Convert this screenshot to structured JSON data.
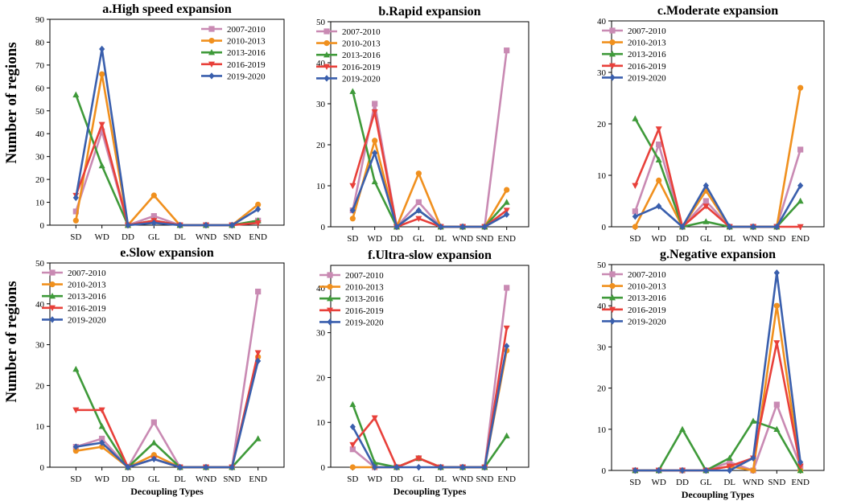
{
  "figure": {
    "ylabel": "Number of regions",
    "xlabel": "Decoupling Types"
  },
  "chart_data": [
    {
      "type": "line",
      "title": "a.High speed expansion",
      "categories": [
        "SD",
        "WD",
        "DD",
        "GL",
        "DL",
        "WND",
        "SND",
        "END"
      ],
      "ylim": [
        0,
        90
      ],
      "yticks": [
        0,
        10,
        20,
        30,
        40,
        50,
        60,
        70,
        80,
        90
      ],
      "xlabel": "",
      "series": [
        {
          "name": "2007-2010",
          "color": "#c98ab3",
          "marker": "square",
          "values": [
            6,
            41,
            0,
            4,
            0,
            0,
            0,
            2
          ]
        },
        {
          "name": "2010-2013",
          "color": "#f0901e",
          "marker": "circle",
          "values": [
            2,
            66,
            0,
            13,
            0,
            0,
            0,
            9
          ]
        },
        {
          "name": "2013-2016",
          "color": "#3f9a3a",
          "marker": "triangle",
          "values": [
            57,
            26,
            0,
            2,
            0,
            0,
            0,
            2
          ]
        },
        {
          "name": "2016-2019",
          "color": "#e8403a",
          "marker": "tridown",
          "values": [
            13,
            44,
            0,
            2,
            0,
            0,
            0,
            1
          ]
        },
        {
          "name": "2019-2020",
          "color": "#3a5fad",
          "marker": "diamond",
          "values": [
            12,
            77,
            0,
            1,
            0,
            0,
            0,
            7
          ]
        }
      ]
    },
    {
      "type": "line",
      "title": "b.Rapid expansion",
      "categories": [
        "SD",
        "WD",
        "DD",
        "GL",
        "DL",
        "WND",
        "SND",
        "END"
      ],
      "ylim": [
        0,
        50
      ],
      "yticks": [
        0,
        10,
        20,
        30,
        40,
        50
      ],
      "xlabel": "",
      "series": [
        {
          "name": "2007-2010",
          "color": "#c98ab3",
          "marker": "square",
          "values": [
            4,
            30,
            0,
            6,
            0,
            0,
            0,
            43
          ]
        },
        {
          "name": "2010-2013",
          "color": "#f0901e",
          "marker": "circle",
          "values": [
            2,
            21,
            0,
            13,
            0,
            0,
            0,
            9
          ]
        },
        {
          "name": "2013-2016",
          "color": "#3f9a3a",
          "marker": "triangle",
          "values": [
            33,
            11,
            0,
            4,
            0,
            0,
            0,
            6
          ]
        },
        {
          "name": "2016-2019",
          "color": "#e8403a",
          "marker": "tridown",
          "values": [
            10,
            28,
            0,
            2,
            0,
            0,
            0,
            4
          ]
        },
        {
          "name": "2019-2020",
          "color": "#3a5fad",
          "marker": "diamond",
          "values": [
            4,
            18,
            0,
            4,
            0,
            0,
            0,
            3
          ]
        }
      ]
    },
    {
      "type": "line",
      "title": "c.Moderate expansion",
      "categories": [
        "SD",
        "WD",
        "DD",
        "GL",
        "DL",
        "WND",
        "SND",
        "END"
      ],
      "ylim": [
        0,
        40
      ],
      "yticks": [
        0,
        10,
        20,
        30,
        40
      ],
      "xlabel": "",
      "series": [
        {
          "name": "2007-2010",
          "color": "#c98ab3",
          "marker": "square",
          "values": [
            3,
            16,
            0,
            5,
            0,
            0,
            0,
            15
          ]
        },
        {
          "name": "2010-2013",
          "color": "#f0901e",
          "marker": "circle",
          "values": [
            0,
            9,
            0,
            7,
            0,
            0,
            0,
            27
          ]
        },
        {
          "name": "2013-2016",
          "color": "#3f9a3a",
          "marker": "triangle",
          "values": [
            21,
            13,
            0,
            1,
            0,
            0,
            0,
            5
          ]
        },
        {
          "name": "2016-2019",
          "color": "#e8403a",
          "marker": "tridown",
          "values": [
            8,
            19,
            0,
            4,
            0,
            0,
            0,
            0
          ]
        },
        {
          "name": "2019-2020",
          "color": "#3a5fad",
          "marker": "diamond",
          "values": [
            2,
            4,
            0,
            8,
            0,
            0,
            0,
            8
          ]
        }
      ]
    },
    {
      "type": "line",
      "title": "e.Slow expansion",
      "categories": [
        "SD",
        "WD",
        "DD",
        "GL",
        "DL",
        "WND",
        "SND",
        "END"
      ],
      "ylim": [
        0,
        50
      ],
      "yticks": [
        0,
        10,
        20,
        30,
        40,
        50
      ],
      "xlabel": "Decoupling Types",
      "series": [
        {
          "name": "2007-2010",
          "color": "#c98ab3",
          "marker": "square",
          "values": [
            5,
            7,
            0,
            11,
            0,
            0,
            0,
            43
          ]
        },
        {
          "name": "2010-2013",
          "color": "#f0901e",
          "marker": "circle",
          "values": [
            4,
            5,
            0,
            3,
            0,
            0,
            0,
            27
          ]
        },
        {
          "name": "2013-2016",
          "color": "#3f9a3a",
          "marker": "triangle",
          "values": [
            24,
            10,
            0,
            6,
            0,
            0,
            0,
            7
          ]
        },
        {
          "name": "2016-2019",
          "color": "#e8403a",
          "marker": "tridown",
          "values": [
            14,
            14,
            0,
            2,
            0,
            0,
            0,
            28
          ]
        },
        {
          "name": "2019-2020",
          "color": "#3a5fad",
          "marker": "diamond",
          "values": [
            5,
            6,
            0,
            2,
            0,
            0,
            0,
            26
          ]
        }
      ]
    },
    {
      "type": "line",
      "title": "f.Ultra-slow expansion",
      "categories": [
        "SD",
        "WD",
        "DD",
        "GL",
        "DL",
        "WND",
        "SND",
        "END"
      ],
      "ylim": [
        0,
        45
      ],
      "yticks": [
        0,
        10,
        20,
        30,
        40
      ],
      "xlabel": "Decoupling Types",
      "series": [
        {
          "name": "2007-2010",
          "color": "#c98ab3",
          "marker": "square",
          "values": [
            4,
            0,
            0,
            2,
            0,
            0,
            0,
            40
          ]
        },
        {
          "name": "2010-2013",
          "color": "#f0901e",
          "marker": "circle",
          "values": [
            0,
            0,
            0,
            2,
            0,
            0,
            0,
            26
          ]
        },
        {
          "name": "2013-2016",
          "color": "#3f9a3a",
          "marker": "triangle",
          "values": [
            14,
            1,
            0,
            2,
            0,
            0,
            0,
            7
          ]
        },
        {
          "name": "2016-2019",
          "color": "#e8403a",
          "marker": "tridown",
          "values": [
            5,
            11,
            0,
            2,
            0,
            0,
            0,
            31
          ]
        },
        {
          "name": "2019-2020",
          "color": "#3a5fad",
          "marker": "diamond",
          "values": [
            9,
            0,
            0,
            0,
            0,
            0,
            0,
            27
          ]
        }
      ]
    },
    {
      "type": "line",
      "title": "g.Negative expansion",
      "categories": [
        "SD",
        "WD",
        "DD",
        "GL",
        "DL",
        "WND",
        "SND",
        "END"
      ],
      "ylim": [
        0,
        50
      ],
      "yticks": [
        0,
        10,
        20,
        30,
        40,
        50
      ],
      "xlabel": "Decoupling Types",
      "series": [
        {
          "name": "2007-2010",
          "color": "#c98ab3",
          "marker": "square",
          "values": [
            0,
            0,
            0,
            0,
            2,
            0,
            16,
            1
          ]
        },
        {
          "name": "2010-2013",
          "color": "#f0901e",
          "marker": "circle",
          "values": [
            0,
            0,
            0,
            0,
            1,
            0,
            40,
            0
          ]
        },
        {
          "name": "2013-2016",
          "color": "#3f9a3a",
          "marker": "triangle",
          "values": [
            0,
            0,
            10,
            0,
            3,
            12,
            10,
            0
          ]
        },
        {
          "name": "2016-2019",
          "color": "#e8403a",
          "marker": "tridown",
          "values": [
            0,
            0,
            0,
            0,
            1,
            3,
            31,
            1
          ]
        },
        {
          "name": "2019-2020",
          "color": "#3a5fad",
          "marker": "diamond",
          "values": [
            0,
            0,
            0,
            0,
            0,
            3,
            48,
            2
          ]
        }
      ]
    }
  ]
}
